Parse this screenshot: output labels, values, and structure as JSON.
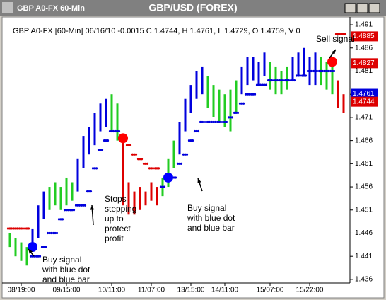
{
  "window_title": "GBP A0-FX 60-Min",
  "chart_data": {
    "type": "hilo",
    "title": "GBP/USD (FOREX)",
    "subtitle": "GBP A0-FX [60-Min] 06/16/10 -0.0015 C 1.4744, H 1.4761, L 1.4729, O 1.4759, V 0",
    "categories": [
      null,
      null,
      "08/19:00",
      null,
      null,
      null,
      null,
      null,
      null,
      null,
      "09/15:00",
      null,
      null,
      null,
      null,
      null,
      null,
      null,
      "10/11:00",
      null,
      null,
      null,
      null,
      null,
      null,
      "11/07:00",
      null,
      null,
      null,
      null,
      null,
      null,
      "13/15:00",
      null,
      null,
      null,
      null,
      null,
      "14/11:00",
      null,
      null,
      null,
      null,
      null,
      null,
      null,
      "15/07:00",
      null,
      null,
      null,
      null,
      null,
      null,
      "15/22:00",
      null,
      null,
      null,
      null,
      null,
      null
    ],
    "high": [
      1.446,
      1.445,
      1.444,
      1.443,
      1.447,
      1.452,
      1.455,
      1.456,
      1.457,
      1.456,
      1.458,
      1.457,
      1.462,
      1.467,
      1.469,
      1.472,
      1.474,
      1.475,
      1.476,
      1.474,
      1.467,
      1.457,
      1.455,
      1.456,
      1.455,
      1.457,
      1.456,
      1.458,
      1.462,
      1.466,
      1.47,
      1.475,
      1.478,
      1.481,
      1.482,
      1.48,
      1.478,
      1.477,
      1.476,
      1.477,
      1.479,
      1.482,
      1.484,
      1.484,
      1.483,
      1.485,
      1.483,
      1.482,
      1.481,
      1.482,
      1.484,
      1.485,
      1.486,
      1.484,
      1.485,
      1.484,
      1.483,
      1.482,
      1.479,
      1.476
    ],
    "low": [
      1.443,
      1.441,
      1.44,
      1.439,
      1.442,
      1.445,
      1.449,
      1.451,
      1.452,
      1.451,
      1.452,
      1.453,
      1.455,
      1.46,
      1.463,
      1.465,
      1.468,
      1.469,
      1.468,
      1.466,
      1.452,
      1.45,
      1.45,
      1.451,
      1.452,
      1.453,
      1.452,
      1.454,
      1.456,
      1.46,
      1.463,
      1.468,
      1.472,
      1.475,
      1.476,
      1.473,
      1.471,
      1.47,
      1.469,
      1.468,
      1.472,
      1.476,
      1.478,
      1.479,
      1.478,
      1.48,
      1.477,
      1.476,
      1.476,
      1.477,
      1.479,
      1.48,
      1.48,
      1.478,
      1.478,
      1.478,
      1.477,
      1.476,
      1.473,
      1.472
    ],
    "colors": [
      "#22cc22",
      "#22cc22",
      "#22cc22",
      "#22cc22",
      "#0000dd",
      "#0000dd",
      "#0000dd",
      "#22cc22",
      "#22cc22",
      "#22cc22",
      "#22cc22",
      "#22cc22",
      "#0000dd",
      "#0000dd",
      "#0000dd",
      "#0000dd",
      "#0000dd",
      "#0000dd",
      "#22cc22",
      "#22cc22",
      "#dd0000",
      "#dd0000",
      "#dd0000",
      "#dd0000",
      "#dd0000",
      "#dd0000",
      "#dd0000",
      "#22cc22",
      "#22cc22",
      "#22cc22",
      "#0000dd",
      "#0000dd",
      "#0000dd",
      "#0000dd",
      "#0000dd",
      "#22cc22",
      "#22cc22",
      "#22cc22",
      "#22cc22",
      "#22cc22",
      "#22cc22",
      "#0000dd",
      "#0000dd",
      "#0000dd",
      "#0000dd",
      "#0000dd",
      "#22cc22",
      "#22cc22",
      "#22cc22",
      "#22cc22",
      "#0000dd",
      "#0000dd",
      "#0000dd",
      "#0000dd",
      "#0000dd",
      "#22cc22",
      "#22cc22",
      "#22cc22",
      "#dd0000",
      "#dd0000"
    ],
    "stops": [
      {
        "color": "#0000dd",
        "values": [
          null,
          null,
          null,
          null,
          1.441,
          1.441,
          1.443,
          1.446,
          1.446,
          1.449,
          1.451,
          1.451,
          1.452,
          1.452,
          1.455,
          1.46,
          1.464,
          1.466,
          1.468,
          1.468,
          null,
          null,
          null,
          null,
          null,
          null,
          null,
          1.456,
          1.458,
          1.458,
          1.461,
          1.463,
          1.466,
          1.468,
          1.47,
          1.47,
          1.47,
          1.47,
          1.47,
          1.471,
          1.472,
          1.474,
          1.476,
          1.476,
          1.478,
          1.478,
          1.479,
          1.479,
          1.479,
          1.479,
          1.479,
          1.48,
          1.48,
          1.481,
          1.481,
          1.481,
          1.481,
          1.481,
          null,
          null
        ]
      },
      {
        "color": "#dd0000",
        "values": [
          1.447,
          1.447,
          1.447,
          1.447,
          null,
          null,
          null,
          null,
          null,
          null,
          null,
          null,
          null,
          null,
          null,
          null,
          null,
          null,
          null,
          null,
          1.466,
          1.465,
          1.463,
          1.462,
          1.461,
          1.46,
          1.46,
          null,
          null,
          null,
          null,
          null,
          null,
          null,
          null,
          null,
          null,
          null,
          null,
          null,
          null,
          null,
          null,
          null,
          null,
          null,
          null,
          null,
          null,
          null,
          null,
          null,
          null,
          null,
          null,
          null,
          null,
          null,
          1.489,
          1.489
        ]
      }
    ],
    "signals": [
      {
        "index": 4,
        "value": 1.443,
        "color": "#0000ff"
      },
      {
        "index": 20,
        "value": 1.4665,
        "color": "#ff0000"
      },
      {
        "index": 28,
        "value": 1.458,
        "color": "#0000ff"
      },
      {
        "index": 57,
        "value": 1.483,
        "color": "#ff0000"
      }
    ],
    "price_tags": [
      {
        "value": 1.4885,
        "color": "#dd0000"
      },
      {
        "value": 1.4827,
        "color": "#dd0000"
      },
      {
        "value": 1.4761,
        "color": "#0000dd"
      },
      {
        "value": 1.4744,
        "color": "#dd0000"
      }
    ],
    "ylim": [
      1.434,
      1.492
    ],
    "yticks": [
      1.436,
      1.441,
      1.446,
      1.451,
      1.456,
      1.461,
      1.466,
      1.471,
      1.476,
      1.481,
      1.486,
      1.491
    ],
    "annotations": [
      [
        "Buy signal",
        "with blue dot",
        "and blue bar"
      ],
      [
        "Stops",
        "stepping",
        "up to",
        "protect",
        "profit"
      ],
      [
        "Buy signal",
        "with blue dot",
        "and blue bar"
      ],
      [
        "Sell signal"
      ]
    ]
  }
}
